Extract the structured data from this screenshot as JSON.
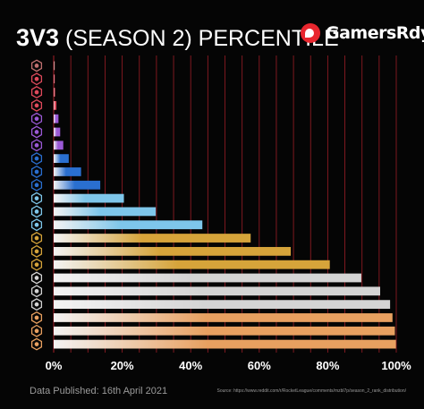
{
  "header": {
    "title_bold": "3V3",
    "title_rest": "(SEASON 2) PERCENTILE",
    "brand": "GamersRdy"
  },
  "footer": {
    "published": "Data Published: 16th April 2021",
    "source": "Source: https://www.reddit.com/r/RocketLeague/comments/mzbl7p/season_2_rank_distribution/"
  },
  "colors": {
    "background": "#050505",
    "gridline": "#8b1a22",
    "brand_red": "#e8262e"
  },
  "chart_data": {
    "type": "bar",
    "orientation": "horizontal",
    "title": "3V3 (SEASON 2) PERCENTILE",
    "x_axis": {
      "ticks": [
        "0%",
        "20%",
        "40%",
        "60%",
        "80%",
        "100%"
      ],
      "range": [
        0,
        100
      ]
    },
    "rank_icons": [
      "supersonic-legend-icon",
      "grand-champion-icon",
      "grand-champion-icon",
      "grand-champion-icon",
      "champion-icon",
      "champion-icon",
      "champion-icon",
      "diamond-icon",
      "diamond-icon",
      "diamond-icon",
      "platinum-icon",
      "platinum-icon",
      "platinum-icon",
      "gold-icon",
      "gold-icon",
      "gold-icon",
      "silver-icon",
      "silver-icon",
      "silver-icon",
      "bronze-icon",
      "bronze-icon",
      "bronze-icon"
    ],
    "values": [
      0.1,
      0.2,
      0.4,
      0.8,
      1.4,
      1.9,
      2.8,
      4.4,
      8.0,
      13.6,
      20.5,
      29.8,
      43.4,
      57.5,
      69.2,
      80.6,
      89.8,
      95.3,
      98.2,
      98.9,
      99.6,
      99.9
    ],
    "bar_colors": [
      "#c07070",
      "#e04a5c",
      "#e04a5c",
      "#e04a5c",
      "#9b59d6",
      "#9b59d6",
      "#9b59d6",
      "#2a6fd0",
      "#2a6fd0",
      "#2a6fd0",
      "#7ec6ea",
      "#7ec6ea",
      "#7ec6ea",
      "#d6a43a",
      "#d6a43a",
      "#d6a43a",
      "#d4d4d4",
      "#d4d4d4",
      "#d4d4d4",
      "#e8a060",
      "#e8a060",
      "#e8a060"
    ],
    "grid": true
  }
}
